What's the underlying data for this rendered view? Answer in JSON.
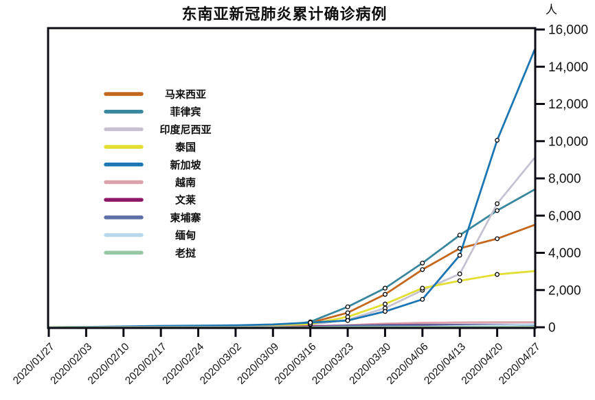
{
  "title": "东南亚新冠肺炎累计确诊病例",
  "y_axis": {
    "unit_label": "人",
    "tick_labels": [
      "0",
      "2,000",
      "4,000",
      "6,000",
      "8,000",
      "10,000",
      "12,000",
      "14,000",
      "16,000"
    ]
  },
  "chart_data": {
    "type": "line",
    "title": "东南亚新冠肺炎累计确诊病例",
    "xlabel": "",
    "ylabel": "人",
    "ylim": [
      0,
      16000
    ],
    "ytick_step": 2000,
    "grid": false,
    "legend_position": "inside-left",
    "marker_style": "open-circle",
    "marker_x_range": [
      "2020/03/16",
      "2020/04/20"
    ],
    "x": [
      "2020/01/27",
      "2020/02/03",
      "2020/02/10",
      "2020/02/17",
      "2020/02/24",
      "2020/03/02",
      "2020/03/09",
      "2020/03/16",
      "2020/03/23",
      "2020/03/30",
      "2020/04/06",
      "2020/04/13",
      "2020/04/20",
      "2020/04/27"
    ],
    "series": [
      {
        "id": "malaysia",
        "name": "马来西亚",
        "color": "#C4671C",
        "markers": true,
        "values": [
          4,
          8,
          18,
          22,
          22,
          29,
          117,
          240,
          780,
          1770,
          3100,
          4240,
          4760,
          5500
        ]
      },
      {
        "id": "philippines",
        "name": "菲律宾",
        "color": "#39879C",
        "markers": true,
        "values": [
          1,
          2,
          3,
          3,
          3,
          3,
          20,
          290,
          1100,
          2100,
          3450,
          4950,
          6270,
          7400
        ]
      },
      {
        "id": "indonesia",
        "name": "印度尼西亚",
        "color": "#C6C2D2",
        "markers": true,
        "values": [
          0,
          0,
          0,
          0,
          0,
          2,
          6,
          135,
          400,
          1030,
          1990,
          2870,
          6640,
          9100
        ]
      },
      {
        "id": "thailand",
        "name": "泰国",
        "color": "#E3DF30",
        "markers": true,
        "values": [
          8,
          19,
          32,
          35,
          35,
          43,
          50,
          170,
          560,
          1250,
          2100,
          2500,
          2840,
          3020
        ]
      },
      {
        "id": "singapore",
        "name": "新加坡",
        "color": "#1C76B4",
        "markers": true,
        "values": [
          4,
          18,
          43,
          75,
          89,
          106,
          150,
          250,
          360,
          850,
          1500,
          3870,
          10050,
          14900
        ]
      },
      {
        "id": "vietnam",
        "name": "越南",
        "color": "#DCA3AD",
        "markers": false,
        "values": [
          2,
          8,
          14,
          16,
          16,
          16,
          30,
          57,
          113,
          194,
          245,
          262,
          268,
          270
        ]
      },
      {
        "id": "brunei",
        "name": "文莱",
        "color": "#8E1A67",
        "markers": false,
        "values": [
          0,
          0,
          0,
          0,
          0,
          0,
          1,
          50,
          88,
          126,
          135,
          136,
          138,
          138
        ]
      },
      {
        "id": "cambodia",
        "name": "柬埔寨",
        "color": "#5D70A8",
        "markers": false,
        "values": [
          1,
          1,
          1,
          1,
          1,
          1,
          2,
          7,
          84,
          103,
          114,
          122,
          122,
          122
        ]
      },
      {
        "id": "myanmar",
        "name": "缅甸",
        "color": "#BAD8EC",
        "markers": false,
        "values": [
          0,
          0,
          0,
          0,
          0,
          0,
          0,
          0,
          15,
          14,
          22,
          62,
          111,
          146
        ]
      },
      {
        "id": "laos",
        "name": "老挝",
        "color": "#97C8A6",
        "markers": false,
        "values": [
          0,
          0,
          0,
          0,
          0,
          0,
          0,
          0,
          2,
          8,
          12,
          19,
          19,
          19
        ]
      }
    ],
    "axis_color": "#0c0c14"
  }
}
